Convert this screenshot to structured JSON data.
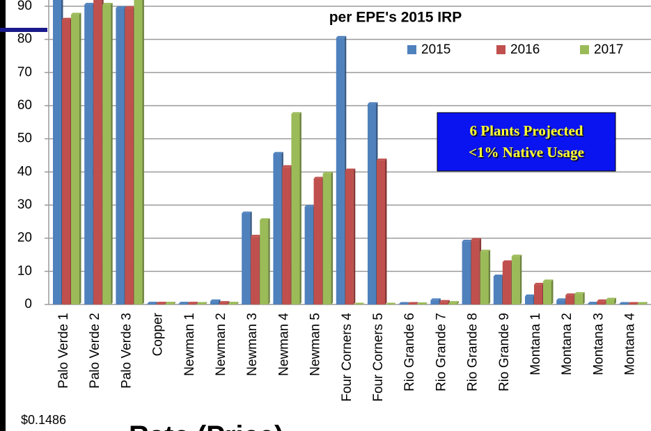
{
  "chart_data": {
    "type": "bar",
    "title": "per EPE's 2015 IRP",
    "categories": [
      "Palo Verde 1",
      "Palo Verde 2",
      "Palo Verde 3",
      "Copper",
      "Newman 1",
      "Newman 2",
      "Newman 3",
      "Newman 4",
      "Newman 5",
      "Four Corners 4",
      "Four Corners 5",
      "Rio Grande 6",
      "Rio Grande 7",
      "Rio Grande 8",
      "Rio Grande 9",
      "Montana 1",
      "Montana 2",
      "Montana 3",
      "Montana 4"
    ],
    "series": [
      {
        "name": "2015",
        "color": "#4f81bd",
        "values": [
          93,
          90.5,
          89.5,
          0.3,
          0.3,
          1,
          27.5,
          45.5,
          29.5,
          80.5,
          60.5,
          0.2,
          1.3,
          19,
          8.5,
          2.5,
          1.3,
          0.3,
          0.2
        ]
      },
      {
        "name": "2016",
        "color": "#c0504d",
        "values": [
          86,
          93,
          89.5,
          0.3,
          0.3,
          0.5,
          20.5,
          41.5,
          38,
          40.5,
          43.5,
          0.2,
          0.8,
          19.5,
          12.8,
          6,
          2.8,
          1,
          0.2
        ]
      },
      {
        "name": "2017",
        "color": "#9bbb59",
        "values": [
          87.5,
          90.5,
          93,
          0.3,
          0.2,
          0.3,
          25.5,
          57.5,
          39.5,
          0,
          0,
          0.1,
          0.5,
          16,
          14.5,
          7,
          3.2,
          1.5,
          0.2
        ]
      }
    ],
    "ylim": [
      0,
      90
    ],
    "yticks": [
      0,
      10,
      20,
      30,
      40,
      50,
      60,
      70,
      80,
      90
    ],
    "grid": true,
    "legend": "top-right",
    "annotations": [
      "6 Plants Projected",
      "<1% Native Usage"
    ]
  },
  "overlay_texts": [
    "$0.1486",
    "Rate (Price)"
  ]
}
